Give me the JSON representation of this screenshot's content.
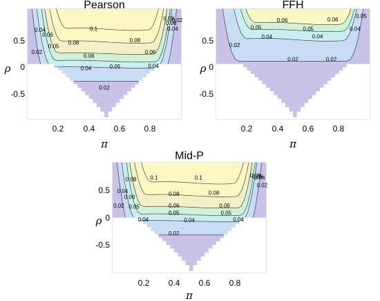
{
  "chart_data": [
    {
      "type": "contour",
      "title": "Pearson",
      "xlabel": "π",
      "ylabel": "ρ",
      "xlim": [
        0,
        1
      ],
      "ylim": [
        -0.95,
        0.95
      ],
      "xticks": [
        "0.2",
        "0.4",
        "0.6",
        "0.8"
      ],
      "yticks": [
        "0.5",
        "0",
        "-0.5"
      ],
      "levels": [
        0.02,
        0.04,
        0.05,
        0.06,
        0.08,
        0.1
      ],
      "band_colors": [
        "#c7c2e6",
        "#c9dcf6",
        "#c9eef2",
        "#cff1d6",
        "#f3f0c6",
        "#fbf7c3"
      ],
      "contour_labels": [
        {
          "text": "0.1",
          "x": 0.43,
          "y": 0.6
        },
        {
          "text": "0.08",
          "x": 0.3,
          "y": 0.36
        },
        {
          "text": "0.08",
          "x": 0.7,
          "y": 0.4
        },
        {
          "text": "0.06",
          "x": 0.4,
          "y": 0.13
        },
        {
          "text": "0.06",
          "x": 0.8,
          "y": 0.2
        },
        {
          "text": "0.05",
          "x": 0.57,
          "y": -0.05
        },
        {
          "text": "0.04",
          "x": 0.38,
          "y": -0.08
        },
        {
          "text": "0.04",
          "x": 0.82,
          "y": -0.04
        },
        {
          "text": "0.02",
          "x": 0.5,
          "y": -0.42
        },
        {
          "text": "0.04",
          "x": 0.08,
          "y": 0.58
        },
        {
          "text": "0.06",
          "x": 0.13,
          "y": 0.5
        },
        {
          "text": "0.05",
          "x": 0.17,
          "y": 0.3
        },
        {
          "text": "0.02",
          "x": 0.06,
          "y": 0.2
        },
        {
          "text": "0.08",
          "x": 0.92,
          "y": 0.78
        },
        {
          "text": "0.06",
          "x": 0.935,
          "y": 0.7
        },
        {
          "text": "0.04",
          "x": 0.945,
          "y": 0.6
        },
        {
          "text": "0.02",
          "x": 0.975,
          "y": 0.75
        }
      ]
    },
    {
      "type": "contour",
      "title": "FFH",
      "xlabel": "π",
      "ylabel": "ρ",
      "xlim": [
        0,
        1
      ],
      "ylim": [
        -0.95,
        0.95
      ],
      "xticks": [
        "0.2",
        "0.4",
        "0.6",
        "0.8"
      ],
      "yticks": [
        "0.5",
        "0",
        "-0.5"
      ],
      "levels": [
        0.02,
        0.04,
        0.05,
        0.06
      ],
      "band_colors": [
        "#c7c2e6",
        "#c9dcf6",
        "#c9eef2",
        "#cff1d6",
        "#fbf7c3"
      ],
      "contour_labels": [
        {
          "text": "0.06",
          "x": 0.43,
          "y": 0.75
        },
        {
          "text": "0.06",
          "x": 0.76,
          "y": 0.76
        },
        {
          "text": "0.05",
          "x": 0.26,
          "y": 0.62
        },
        {
          "text": "0.05",
          "x": 0.6,
          "y": 0.6
        },
        {
          "text": "0.04",
          "x": 0.33,
          "y": 0.46
        },
        {
          "text": "0.04",
          "x": 0.66,
          "y": 0.47
        },
        {
          "text": "0.04",
          "x": 0.905,
          "y": 0.6
        },
        {
          "text": "0.02",
          "x": 0.12,
          "y": 0.32
        },
        {
          "text": "0.02",
          "x": 0.5,
          "y": 0.07
        },
        {
          "text": "0.02",
          "x": 0.75,
          "y": 0.07
        },
        {
          "text": "0.05",
          "x": 0.945,
          "y": 0.82
        }
      ]
    },
    {
      "type": "contour",
      "title": "Mid-P",
      "xlabel": "π",
      "ylabel": "ρ",
      "xlim": [
        0,
        1
      ],
      "ylim": [
        -0.95,
        0.95
      ],
      "xticks": [
        "0.2",
        "0.4",
        "0.6",
        "0.8"
      ],
      "yticks": [
        "0.5",
        "0",
        "-0.5"
      ],
      "levels": [
        0.02,
        0.04,
        0.05,
        0.06,
        0.08,
        0.1
      ],
      "band_colors": [
        "#c7c2e6",
        "#c9dcf6",
        "#c9eef2",
        "#cff1d6",
        "#f3f0c6",
        "#fbf7c3"
      ],
      "contour_labels": [
        {
          "text": "0.1",
          "x": 0.27,
          "y": 0.68
        },
        {
          "text": "0.1",
          "x": 0.56,
          "y": 0.68
        },
        {
          "text": "0.08",
          "x": 0.12,
          "y": 0.65
        },
        {
          "text": "0.08",
          "x": 0.4,
          "y": 0.4
        },
        {
          "text": "0.08",
          "x": 0.66,
          "y": 0.42
        },
        {
          "text": "0.06",
          "x": 0.4,
          "y": 0.2
        },
        {
          "text": "0.06",
          "x": 0.73,
          "y": 0.2
        },
        {
          "text": "0.05",
          "x": 0.4,
          "y": 0.07
        },
        {
          "text": "0.05",
          "x": 0.74,
          "y": 0.07
        },
        {
          "text": "0.04",
          "x": 0.5,
          "y": -0.05
        },
        {
          "text": "0.04",
          "x": 0.82,
          "y": -0.04
        },
        {
          "text": "0.04",
          "x": 0.065,
          "y": 0.45
        },
        {
          "text": "0.06",
          "x": 0.11,
          "y": 0.35
        },
        {
          "text": "0.05",
          "x": 0.14,
          "y": 0.18
        },
        {
          "text": "0.04",
          "x": 0.2,
          "y": -0.04
        },
        {
          "text": "0.02",
          "x": 0.04,
          "y": 0.2
        },
        {
          "text": "0.02",
          "x": 0.4,
          "y": -0.28
        },
        {
          "text": "0.08",
          "x": 0.93,
          "y": 0.72
        },
        {
          "text": "0.06",
          "x": 0.945,
          "y": 0.7
        },
        {
          "text": "0.04",
          "x": 0.958,
          "y": 0.68
        },
        {
          "text": "0.02",
          "x": 0.975,
          "y": 0.55
        }
      ]
    }
  ]
}
